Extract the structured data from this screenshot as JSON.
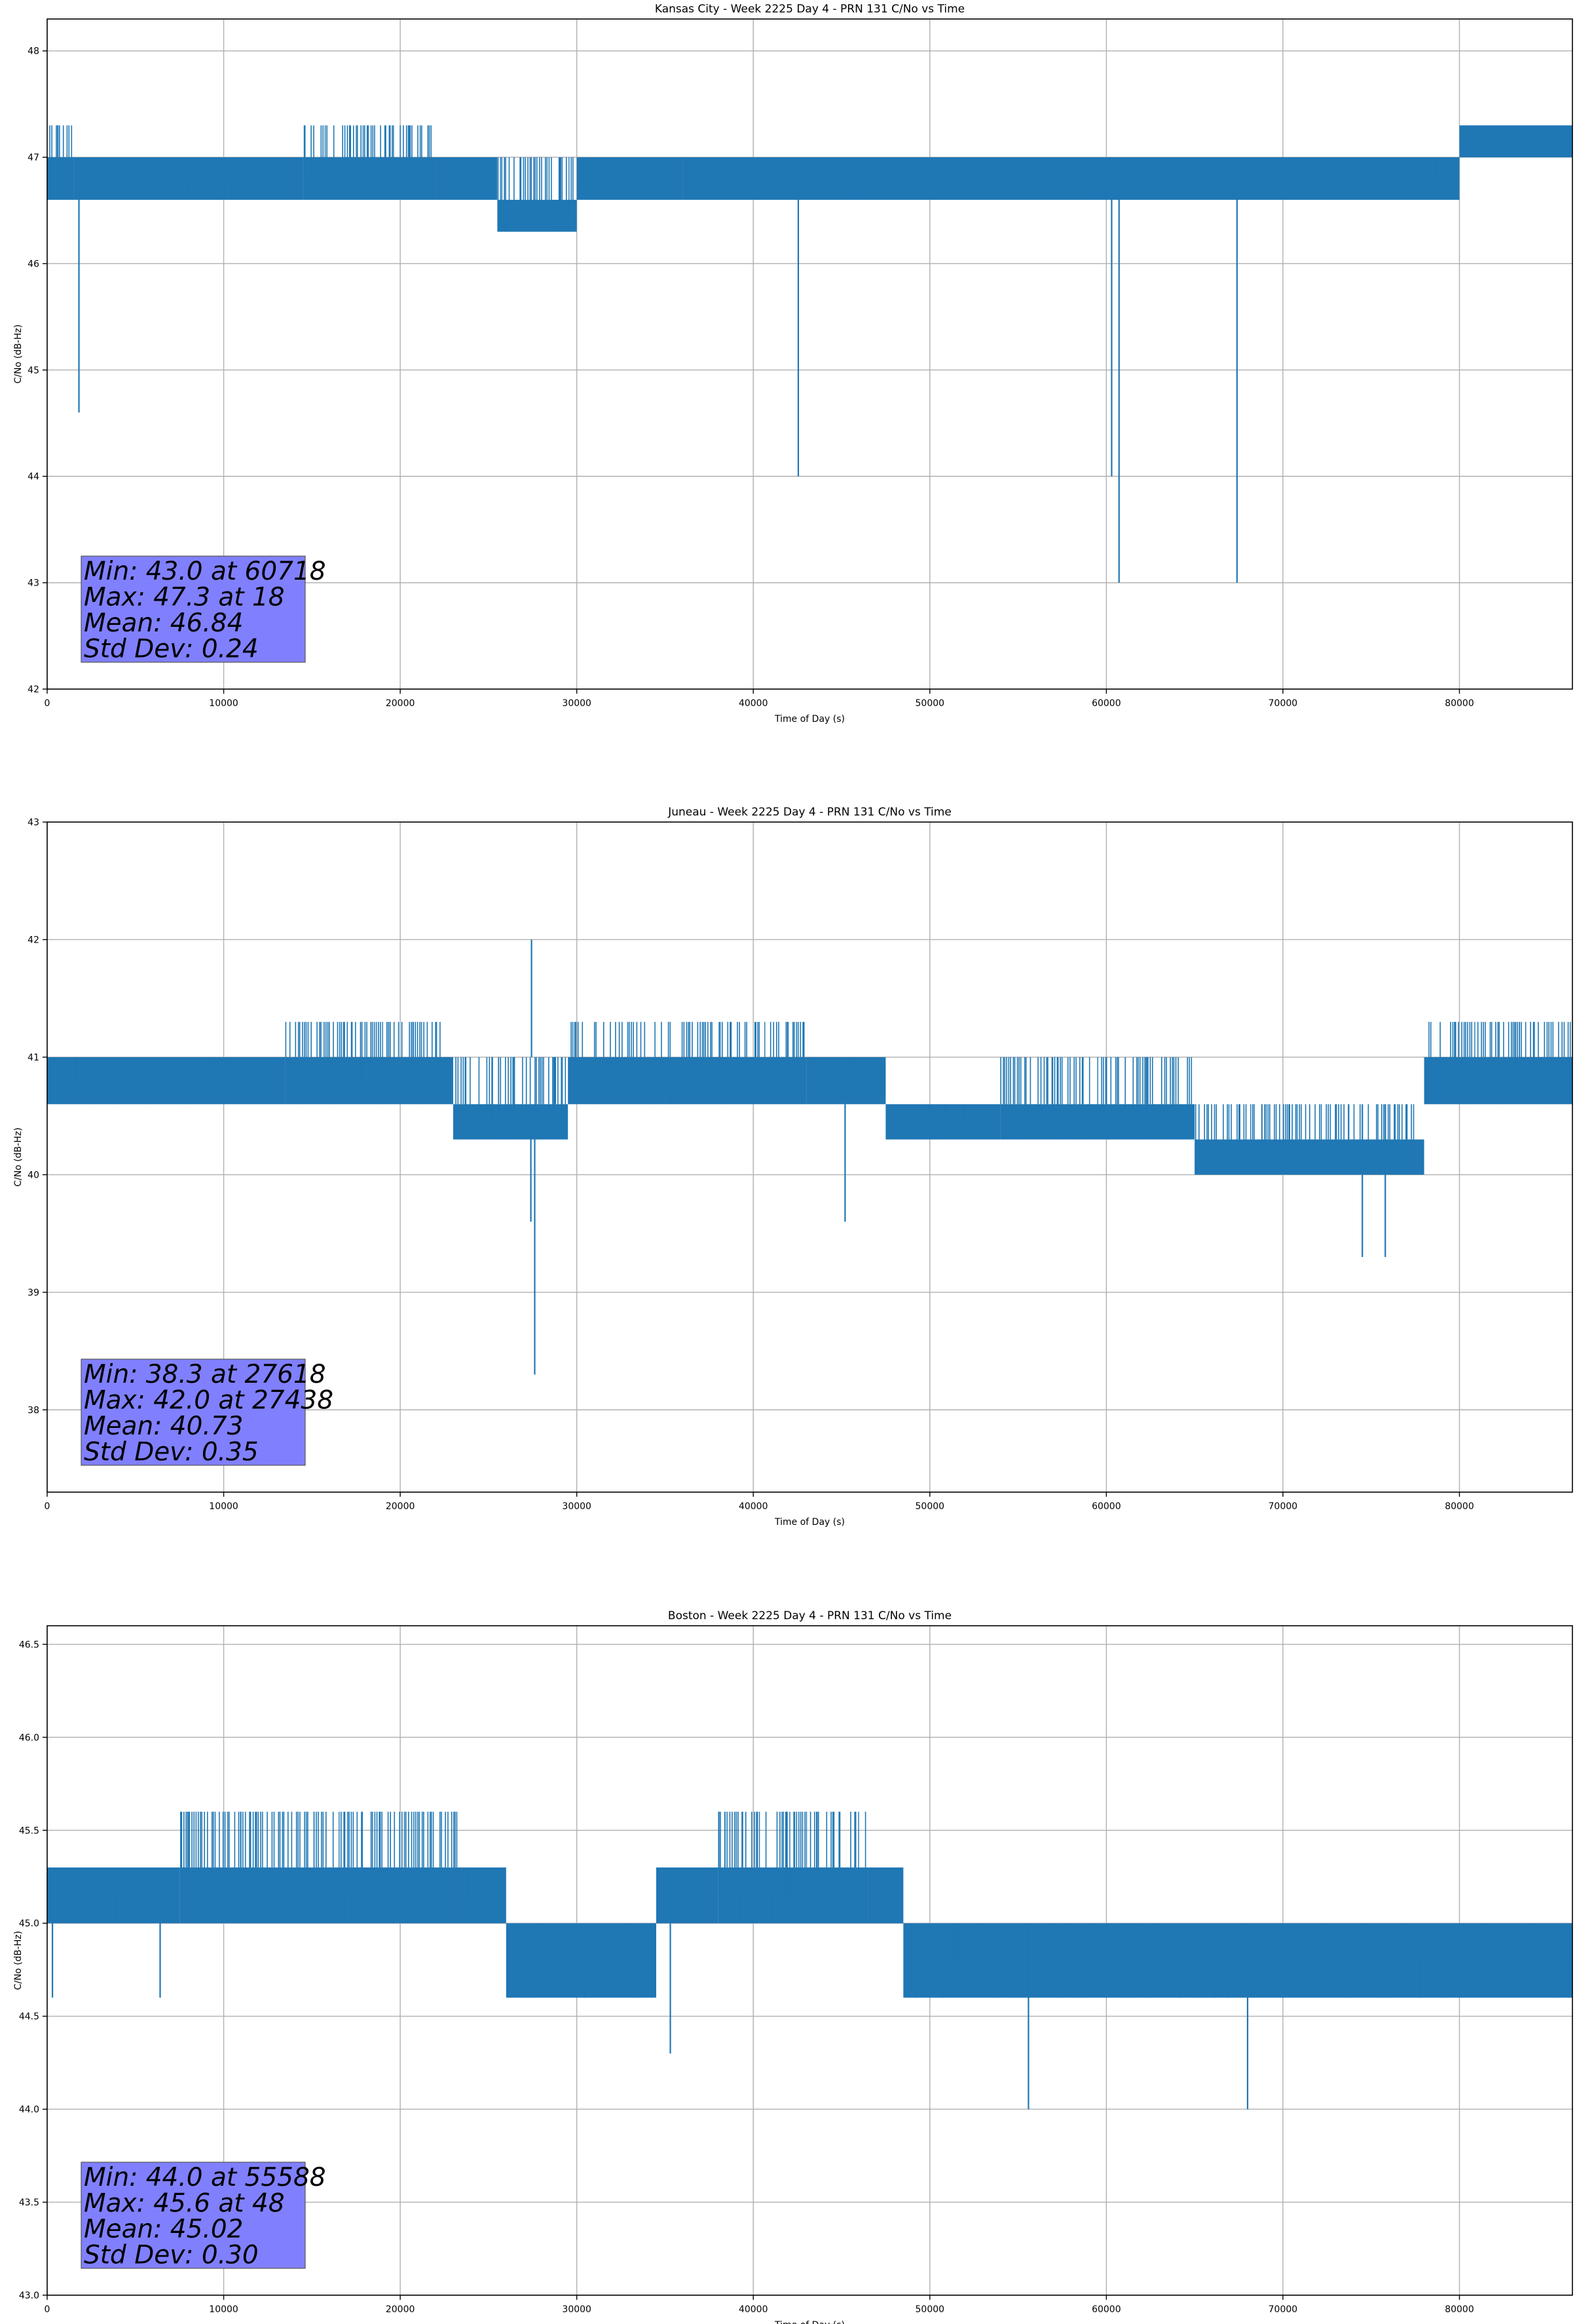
{
  "chart_data": [
    {
      "type": "line",
      "title": "Kansas City - Week 2225 Day 4 - PRN 131 C/No vs Time",
      "xlabel": "Time of Day (s)",
      "ylabel": "C/No (dB-Hz)",
      "xlim": [
        0,
        86400
      ],
      "ylim": [
        42.0,
        48.3
      ],
      "xticks": [
        0,
        10000,
        20000,
        30000,
        40000,
        50000,
        60000,
        70000,
        80000
      ],
      "xtick_labels": [
        "0",
        "10000",
        "20000",
        "30000",
        "40000",
        "50000",
        "60000",
        "70000",
        "80000"
      ],
      "yticks": [
        42,
        43,
        44,
        45,
        46,
        47,
        48
      ],
      "ytick_labels": [
        "42",
        "43",
        "44",
        "45",
        "46",
        "47",
        "48"
      ],
      "grid": true,
      "line_color": "#1f77b4",
      "stats_box_color": "#8080ff",
      "stats": [
        "Min: 43.0 at 60718",
        "Max: 47.3 at 18",
        "Mean: 46.84",
        "Std Dev: 0.24"
      ],
      "series": [
        {
          "name": "",
          "segments": [
            {
              "x": [
                0,
                1500
              ],
              "levels": [
                46.6,
                47.0,
                47.3
              ]
            },
            {
              "x": [
                1500,
                14500
              ],
              "levels": [
                46.6,
                47.0
              ]
            },
            {
              "x": [
                14500,
                22000
              ],
              "levels": [
                46.6,
                47.0,
                47.3
              ]
            },
            {
              "x": [
                22000,
                25500
              ],
              "levels": [
                46.6,
                47.0
              ]
            },
            {
              "x": [
                25500,
                30000
              ],
              "levels": [
                46.3,
                46.6,
                47.0
              ]
            },
            {
              "x": [
                30000,
                36000
              ],
              "levels": [
                46.6,
                47.0
              ]
            },
            {
              "x": [
                36000,
                80000
              ],
              "levels": [
                46.6,
                47.0
              ]
            },
            {
              "x": [
                80000,
                86400
              ],
              "levels": [
                47.0,
                47.3
              ]
            }
          ],
          "dips": [
            {
              "x": 1800,
              "y": 44.6
            },
            {
              "x": 42550,
              "y": 44.0
            },
            {
              "x": 60300,
              "y": 44.0
            },
            {
              "x": 60718,
              "y": 43.0
            },
            {
              "x": 67400,
              "y": 43.0
            }
          ]
        }
      ]
    },
    {
      "type": "line",
      "title": "Juneau - Week 2225 Day 4 - PRN 131 C/No vs Time",
      "xlabel": "Time of Day (s)",
      "ylabel": "C/No (dB-Hz)",
      "xlim": [
        0,
        86400
      ],
      "ylim": [
        37.3,
        43.0
      ],
      "xticks": [
        0,
        10000,
        20000,
        30000,
        40000,
        50000,
        60000,
        70000,
        80000
      ],
      "xtick_labels": [
        "0",
        "10000",
        "20000",
        "30000",
        "40000",
        "50000",
        "60000",
        "70000",
        "80000"
      ],
      "yticks": [
        38,
        39,
        40,
        41,
        42,
        43
      ],
      "ytick_labels": [
        "38",
        "39",
        "40",
        "41",
        "42",
        "43"
      ],
      "grid": true,
      "line_color": "#1f77b4",
      "stats_box_color": "#8080ff",
      "stats": [
        "Min: 38.3 at 27618",
        "Max: 42.0 at 27438",
        "Mean: 40.73",
        "Std Dev: 0.35"
      ],
      "series": [
        {
          "name": "",
          "segments": [
            {
              "x": [
                0,
                13500
              ],
              "levels": [
                40.6,
                41.0
              ]
            },
            {
              "x": [
                13500,
                23000
              ],
              "levels": [
                40.6,
                41.0,
                41.3
              ]
            },
            {
              "x": [
                23000,
                29500
              ],
              "levels": [
                40.3,
                40.6,
                41.0
              ]
            },
            {
              "x": [
                29500,
                43000
              ],
              "levels": [
                40.6,
                41.0,
                41.3
              ]
            },
            {
              "x": [
                43000,
                47500
              ],
              "levels": [
                40.6,
                41.0
              ]
            },
            {
              "x": [
                47500,
                54000
              ],
              "levels": [
                40.3,
                40.6
              ]
            },
            {
              "x": [
                54000,
                65000
              ],
              "levels": [
                40.3,
                40.6,
                41.0
              ]
            },
            {
              "x": [
                65000,
                78000
              ],
              "levels": [
                40.0,
                40.3,
                40.6
              ]
            },
            {
              "x": [
                78000,
                86400
              ],
              "levels": [
                40.6,
                41.0,
                41.3
              ]
            }
          ],
          "dips": [
            {
              "x": 27400,
              "y": 39.6
            },
            {
              "x": 27618,
              "y": 38.3
            },
            {
              "x": 45200,
              "y": 39.6
            },
            {
              "x": 74500,
              "y": 39.3
            },
            {
              "x": 75800,
              "y": 39.3
            }
          ],
          "peaks": [
            {
              "x": 27438,
              "y": 42.0
            }
          ]
        }
      ]
    },
    {
      "type": "line",
      "title": "Boston - Week 2225 Day 4 - PRN 131 C/No vs Time",
      "xlabel": "Time of Day (s)",
      "ylabel": "C/No (dB-Hz)",
      "xlim": [
        0,
        86400
      ],
      "ylim": [
        43.0,
        46.6
      ],
      "xticks": [
        0,
        10000,
        20000,
        30000,
        40000,
        50000,
        60000,
        70000,
        80000
      ],
      "xtick_labels": [
        "0",
        "10000",
        "20000",
        "30000",
        "40000",
        "50000",
        "60000",
        "70000",
        "80000"
      ],
      "yticks": [
        43.0,
        43.5,
        44.0,
        44.5,
        45.0,
        45.5,
        46.0,
        46.5
      ],
      "ytick_labels": [
        "43.0",
        "43.5",
        "44.0",
        "44.5",
        "45.0",
        "45.5",
        "46.0",
        "46.5"
      ],
      "grid": true,
      "line_color": "#1f77b4",
      "stats_box_color": "#8080ff",
      "stats": [
        "Min: 44.0 at 55588",
        "Max: 45.6 at 48",
        "Mean: 45.02",
        "Std Dev: 0.30"
      ],
      "series": [
        {
          "name": "",
          "segments": [
            {
              "x": [
                0,
                7500
              ],
              "levels": [
                45.0,
                45.3
              ]
            },
            {
              "x": [
                7500,
                23500
              ],
              "levels": [
                45.0,
                45.3,
                45.6
              ]
            },
            {
              "x": [
                23500,
                26000
              ],
              "levels": [
                45.0,
                45.3
              ]
            },
            {
              "x": [
                26000,
                34500
              ],
              "levels": [
                44.6,
                45.0
              ]
            },
            {
              "x": [
                34500,
                38000
              ],
              "levels": [
                45.0,
                45.3
              ]
            },
            {
              "x": [
                38000,
                46500
              ],
              "levels": [
                45.0,
                45.3,
                45.6
              ]
            },
            {
              "x": [
                46500,
                48500
              ],
              "levels": [
                45.0,
                45.3
              ]
            },
            {
              "x": [
                48500,
                86400
              ],
              "levels": [
                44.6,
                45.0
              ]
            }
          ],
          "dips": [
            {
              "x": 300,
              "y": 44.6
            },
            {
              "x": 6400,
              "y": 44.6
            },
            {
              "x": 35300,
              "y": 44.3
            },
            {
              "x": 55588,
              "y": 44.0
            },
            {
              "x": 68000,
              "y": 44.0
            }
          ]
        }
      ]
    }
  ]
}
